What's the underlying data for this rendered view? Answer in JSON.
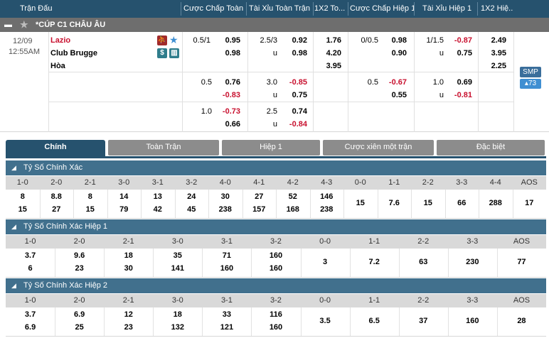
{
  "header": {
    "cols": [
      "Trận Đấu",
      "Cược Chấp Toàn...",
      "Tài Xỉu Toàn Trận",
      "1X2 To...",
      "Cược Chấp Hiệp 1",
      "Tài Xỉu Hiệp 1",
      "1X2 Hiệ..."
    ]
  },
  "league": {
    "name": "*CÚP C1 CHÂU ÂU"
  },
  "match": {
    "date": "12/09",
    "time": "12:55AM",
    "home": "Lazio",
    "away": "Club Brugge",
    "draw": "Hòa",
    "smp": "SMP",
    "more": "73",
    "rows": [
      {
        "ft_hdp": {
          "line": "0.5/1",
          "home": "0.95",
          "away": "0.98"
        },
        "ft_ou": {
          "line": "2.5/3",
          "over": "0.92",
          "u": "u",
          "under": "0.98"
        },
        "ft_1x2": {
          "h": "1.76",
          "a": "4.20",
          "d": "3.95"
        },
        "h1_hdp": {
          "line": "0/0.5",
          "home": "0.98",
          "away": "0.90"
        },
        "h1_ou": {
          "line": "1/1.5",
          "over": "-0.87",
          "u": "u",
          "under": "0.75"
        },
        "h1_1x2": {
          "h": "2.49",
          "a": "3.95",
          "d": "2.25"
        }
      },
      {
        "ft_hdp": {
          "line": "0.5",
          "home": "0.76",
          "away": "-0.83"
        },
        "ft_ou": {
          "line": "3.0",
          "over": "-0.85",
          "u": "u",
          "under": "0.75"
        },
        "h1_hdp": {
          "line": "0.5",
          "home": "-0.67",
          "away": "0.55"
        },
        "h1_ou": {
          "line": "1.0",
          "over": "0.69",
          "u": "u",
          "under": "-0.81"
        }
      },
      {
        "ft_hdp": {
          "line": "1.0",
          "home": "-0.73",
          "away": "0.66"
        },
        "ft_ou": {
          "line": "2.5",
          "over": "0.74",
          "u": "u",
          "under": "-0.84"
        }
      }
    ]
  },
  "tabs": [
    "Chính",
    "Toàn Trận",
    "Hiệp 1",
    "Cược xiên một trận",
    "Đặc biệt"
  ],
  "sections": [
    {
      "title": "Tỷ Số Chính Xác",
      "headers": [
        "1-0",
        "2-0",
        "2-1",
        "3-0",
        "3-1",
        "3-2",
        "4-0",
        "4-1",
        "4-2",
        "4-3",
        "0-0",
        "1-1",
        "2-2",
        "3-3",
        "4-4",
        "AOS"
      ],
      "home": [
        "8",
        "8.8",
        "8",
        "14",
        "13",
        "24",
        "30",
        "27",
        "52",
        "146",
        "15",
        "7.6",
        "15",
        "66",
        "288",
        "17"
      ],
      "away": [
        "15",
        "27",
        "15",
        "79",
        "42",
        "45",
        "238",
        "157",
        "168",
        "238",
        "",
        "",
        "",
        "",
        "",
        ""
      ]
    },
    {
      "title": "Tỷ Số Chính Xác Hiệp 1",
      "headers": [
        "1-0",
        "2-0",
        "2-1",
        "3-0",
        "3-1",
        "3-2",
        "0-0",
        "1-1",
        "2-2",
        "3-3",
        "AOS"
      ],
      "home": [
        "3.7",
        "9.6",
        "18",
        "35",
        "71",
        "160",
        "3",
        "7.2",
        "63",
        "230",
        "77"
      ],
      "away": [
        "6",
        "23",
        "30",
        "141",
        "160",
        "160",
        "",
        "",
        "",
        "",
        ""
      ]
    },
    {
      "title": "Tỷ Số Chính Xác Hiệp 2",
      "headers": [
        "1-0",
        "2-0",
        "2-1",
        "3-0",
        "3-1",
        "3-2",
        "0-0",
        "1-1",
        "2-2",
        "3-3",
        "AOS"
      ],
      "home": [
        "3.7",
        "6.9",
        "12",
        "18",
        "33",
        "116",
        "3.5",
        "6.5",
        "37",
        "160",
        "28"
      ],
      "away": [
        "6.9",
        "25",
        "23",
        "132",
        "121",
        "160",
        "",
        "",
        "",
        "",
        ""
      ]
    }
  ]
}
